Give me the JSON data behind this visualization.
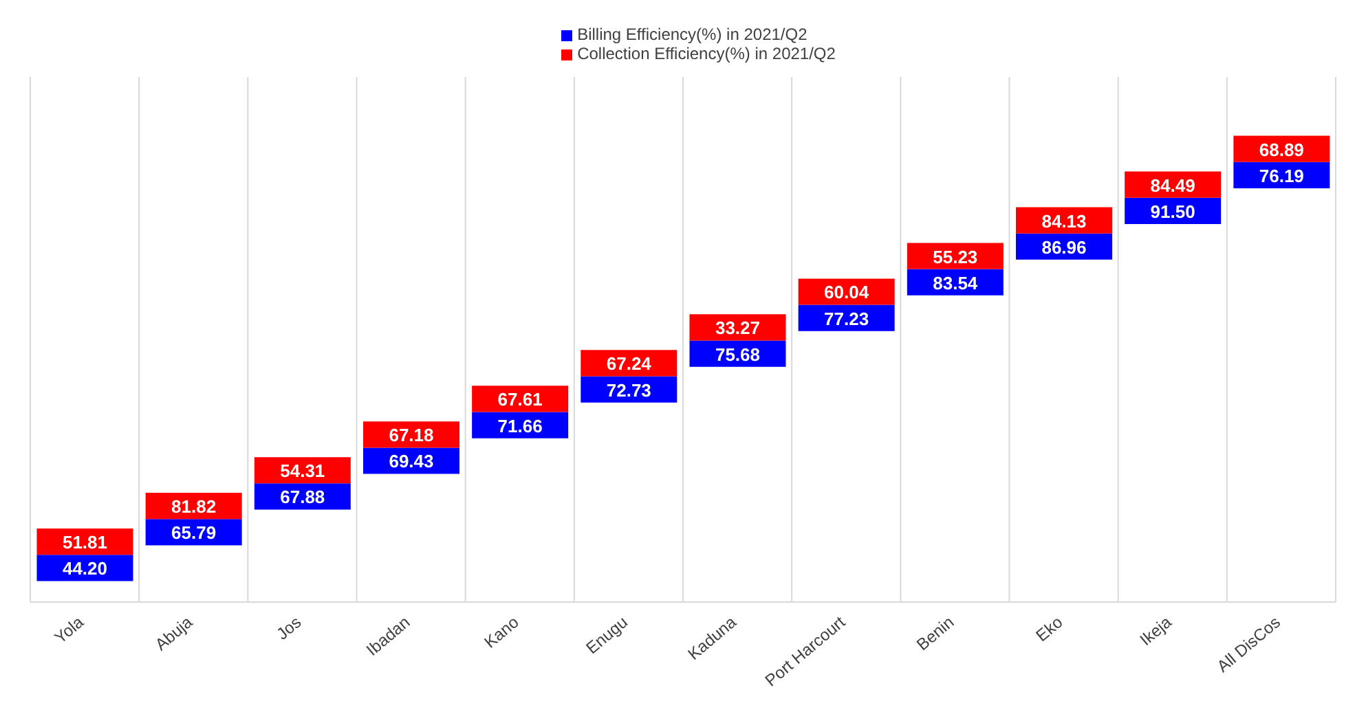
{
  "chart_data": {
    "type": "other",
    "categories": [
      "Yola",
      "Abuja",
      "Jos",
      "Ibadan",
      "Kano",
      "Enugu",
      "Kaduna",
      "Port Harcourt",
      "Benin",
      "Eko",
      "Ikeja",
      "All DisCos"
    ],
    "series": [
      {
        "name": "Billing Efficiency(%) in 2021/Q2",
        "color": "#0000ff",
        "values": [
          44.2,
          65.79,
          67.88,
          69.43,
          71.66,
          72.73,
          75.68,
          77.23,
          83.54,
          86.96,
          91.5,
          76.19
        ],
        "value_labels": [
          "44.20",
          "65.79",
          "67.88",
          "69.43",
          "71.66",
          "72.73",
          "75.68",
          "77.23",
          "83.54",
          "86.96",
          "91.50",
          "76.19"
        ]
      },
      {
        "name": "Collection Efficiency(%) in 2021/Q2",
        "color": "#ff0000",
        "values": [
          51.81,
          81.82,
          54.31,
          67.18,
          67.61,
          67.24,
          33.27,
          60.04,
          55.23,
          84.13,
          84.49,
          68.89
        ],
        "value_labels": [
          "51.81",
          "81.82",
          "54.31",
          "67.18",
          "67.61",
          "67.24",
          "33.27",
          "60.04",
          "55.23",
          "84.13",
          "84.49",
          "68.89"
        ]
      }
    ],
    "legend": "top"
  }
}
